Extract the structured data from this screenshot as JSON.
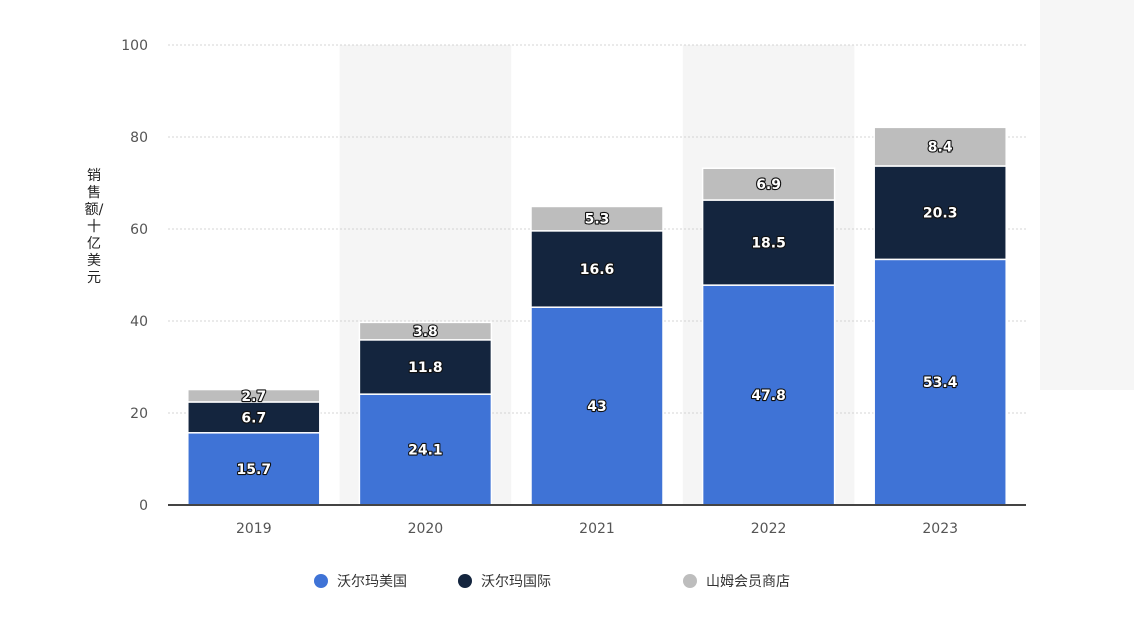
{
  "chart_data": {
    "type": "bar",
    "stacked": true,
    "categories": [
      "2019",
      "2020",
      "2021",
      "2022",
      "2023"
    ],
    "series": [
      {
        "name": "沃尔玛美国",
        "values": [
          15.7,
          24.1,
          43,
          47.8,
          53.4
        ],
        "color": "#3f73d6",
        "label_color": "#ffffff"
      },
      {
        "name": "沃尔玛国际",
        "values": [
          6.7,
          11.8,
          16.6,
          18.5,
          20.3
        ],
        "color": "#14253e",
        "label_color": "#ffffff"
      },
      {
        "name": "山姆会员商店",
        "values": [
          2.7,
          3.8,
          5.3,
          6.9,
          8.4
        ],
        "color": "#bdbdbd",
        "label_color": "#ffffff"
      }
    ],
    "ylabel": "销售额/十亿美元",
    "ylim": [
      0,
      100
    ],
    "yticks": [
      0,
      20,
      40,
      60,
      80,
      100
    ],
    "grid": true,
    "legend_position": "bottom"
  }
}
